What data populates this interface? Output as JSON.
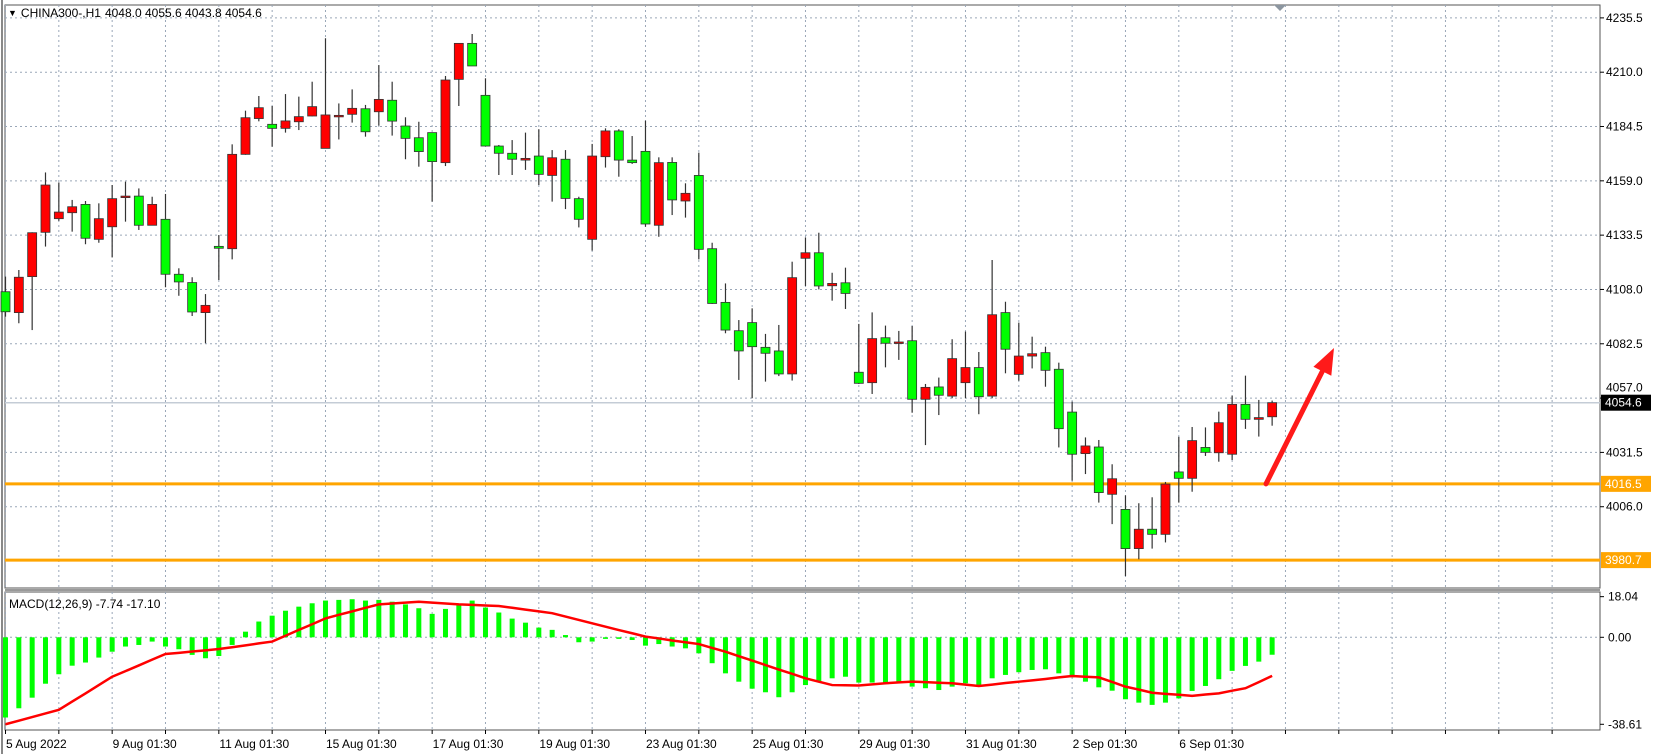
{
  "header": {
    "symbol": "CHINA300-,H1",
    "ohlc": "4048.0 4055.6 4043.8 4054.6",
    "menu_icon": "triangle-down-icon"
  },
  "colors": {
    "up_candle": "#ff0000",
    "down_candle": "#00ff00",
    "support_lines": "#ffa500",
    "arrow": "#ff1a1a",
    "macd_histogram": "#00ff00",
    "macd_signal": "#ff0000",
    "current_price_label_bg": "#000000"
  },
  "price_axis": {
    "ticks": [
      "4235.5",
      "4210.0",
      "4184.5",
      "4159.0",
      "4133.5",
      "4108.0",
      "4082.5",
      "4057.0",
      "4031.5",
      "4006.0"
    ],
    "current_price": "4054.6",
    "levels": [
      "4016.5",
      "3980.7"
    ]
  },
  "indicator": {
    "label": "MACD(12,26,9) -7.74 -17.10",
    "axis_ticks": [
      "18.04",
      "0.00",
      "-38.61"
    ]
  },
  "time_axis": {
    "labels": [
      "5 Aug 2022",
      "9 Aug 01:30",
      "11 Aug 01:30",
      "15 Aug 01:30",
      "17 Aug 01:30",
      "19 Aug 01:30",
      "23 Aug 01:30",
      "25 Aug 01:30",
      "29 Aug 01:30",
      "31 Aug 01:30",
      "2 Sep 01:30",
      "6 Sep 01:30"
    ]
  },
  "annotations": {
    "arrow": "up-right arrow from 4016.5 toward 4087"
  },
  "chart_data": [
    {
      "type": "candlestick",
      "title": "CHINA300-,H1",
      "timeframe": "H1",
      "ylim": [
        3968,
        4240
      ],
      "grid": true,
      "ohlc": [
        [
          4106.7,
          4113.8,
          4095.0,
          4097.3
        ],
        [
          4096.9,
          4116.9,
          4091.9,
          4113.5
        ],
        [
          4113.8,
          4134.6,
          4088.7,
          4134.4
        ],
        [
          4134.6,
          4162.7,
          4127.9,
          4156.8
        ],
        [
          4141.0,
          4158.0,
          4140.0,
          4144.1
        ],
        [
          4143.8,
          4149.8,
          4134.9,
          4146.6
        ],
        [
          4147.7,
          4149.3,
          4129.0,
          4131.8
        ],
        [
          4131.3,
          4148.2,
          4129.7,
          4141.0
        ],
        [
          4137.2,
          4156.8,
          4122.8,
          4150.4
        ],
        [
          4151.6,
          4158.4,
          4139.6,
          4151.6
        ],
        [
          4151.6,
          4155.2,
          4135.7,
          4137.9
        ],
        [
          4137.9,
          4151.3,
          4137.9,
          4147.7
        ],
        [
          4140.7,
          4152.6,
          4108.8,
          4114.9
        ],
        [
          4114.9,
          4117.7,
          4104.8,
          4111.3
        ],
        [
          4111.0,
          4113.5,
          4095.3,
          4097.2
        ],
        [
          4096.9,
          4105.6,
          4082.5,
          4100.3
        ],
        [
          4128.0,
          4133.3,
          4112.2,
          4127.1
        ],
        [
          4126.9,
          4175.9,
          4121.9,
          4171.2
        ],
        [
          4171.2,
          4191.7,
          4171.0,
          4188.4
        ],
        [
          4188.0,
          4198.6,
          4186.7,
          4193.1
        ],
        [
          4185.3,
          4193.9,
          4174.8,
          4183.4
        ],
        [
          4183.4,
          4199.5,
          4181.4,
          4186.9
        ],
        [
          4186.5,
          4198.3,
          4182.6,
          4188.9
        ],
        [
          4189.2,
          4205.3,
          4189.0,
          4193.6
        ],
        [
          4174.0,
          4225.7,
          4174.0,
          4189.7
        ],
        [
          4189.3,
          4195.1,
          4178.2,
          4189.5
        ],
        [
          4190.0,
          4201.7,
          4186.1,
          4192.8
        ],
        [
          4192.6,
          4194.4,
          4179.5,
          4181.8
        ],
        [
          4191.2,
          4213.1,
          4184.7,
          4197.0
        ],
        [
          4196.6,
          4205.3,
          4180.0,
          4186.8
        ],
        [
          4184.5,
          4188.6,
          4168.9,
          4178.7
        ],
        [
          4179.0,
          4186.5,
          4165.4,
          4172.5
        ],
        [
          4181.4,
          4181.4,
          4149.0,
          4167.8
        ],
        [
          4167.3,
          4208.0,
          4165.7,
          4206.1
        ],
        [
          4206.4,
          4223.3,
          4193.9,
          4223.3
        ],
        [
          4223.3,
          4227.7,
          4212.7,
          4212.7
        ],
        [
          4198.9,
          4206.9,
          4175.0,
          4175.1
        ],
        [
          4175.1,
          4175.6,
          4161.5,
          4171.7
        ],
        [
          4171.7,
          4177.9,
          4161.5,
          4168.9
        ],
        [
          4168.5,
          4181.4,
          4163.9,
          4169.3
        ],
        [
          4170.4,
          4183.0,
          4156.8,
          4161.8
        ],
        [
          4161.3,
          4173.2,
          4149.0,
          4169.6
        ],
        [
          4168.9,
          4173.2,
          4145.5,
          4150.5
        ],
        [
          4150.4,
          4151.3,
          4136.9,
          4140.7
        ],
        [
          4131.3,
          4176.1,
          4126.0,
          4170.4
        ],
        [
          4170.1,
          4183.4,
          4165.0,
          4182.2
        ],
        [
          4182.2,
          4183.0,
          4160.7,
          4168.5
        ],
        [
          4168.5,
          4179.8,
          4166.7,
          4167.3
        ],
        [
          4172.6,
          4187.0,
          4137.2,
          4138.5
        ],
        [
          4137.9,
          4169.8,
          4132.5,
          4167.3
        ],
        [
          4167.4,
          4169.8,
          4142.7,
          4149.8
        ],
        [
          4149.3,
          4157.6,
          4141.5,
          4152.9
        ],
        [
          4161.3,
          4172.0,
          4121.9,
          4126.6
        ],
        [
          4126.9,
          4129.7,
          4101.0,
          4101.2
        ],
        [
          4101.7,
          4110.6,
          4087.2,
          4088.7
        ],
        [
          4088.4,
          4093.4,
          4065.3,
          4078.9
        ],
        [
          4092.2,
          4098.9,
          4056.7,
          4080.9
        ],
        [
          4080.6,
          4086.9,
          4064.5,
          4077.8
        ],
        [
          4078.9,
          4091.1,
          4067.1,
          4068.1
        ],
        [
          4068.1,
          4120.8,
          4065.0,
          4113.3
        ],
        [
          4122.4,
          4132.2,
          4109.4,
          4125.0
        ],
        [
          4125.0,
          4134.4,
          4107.8,
          4109.4
        ],
        [
          4109.5,
          4115.6,
          4102.5,
          4110.6
        ],
        [
          4110.9,
          4118.0,
          4098.6,
          4105.9
        ],
        [
          4068.9,
          4091.6,
          4063.4,
          4063.7
        ],
        [
          4064.0,
          4097.0,
          4058.7,
          4084.7
        ],
        [
          4085.1,
          4090.8,
          4071.2,
          4082.5
        ],
        [
          4083.1,
          4088.3,
          4074.7,
          4083.1
        ],
        [
          4083.7,
          4090.6,
          4049.9,
          4056.2
        ],
        [
          4056.2,
          4063.4,
          4034.7,
          4061.8
        ],
        [
          4062.0,
          4066.4,
          4048.8,
          4058.1
        ],
        [
          4057.7,
          4084.4,
          4056.7,
          4075.3
        ],
        [
          4064.0,
          4088.0,
          4056.7,
          4071.1
        ],
        [
          4071.1,
          4078.4,
          4049.2,
          4057.4
        ],
        [
          4057.7,
          4121.6,
          4056.7,
          4095.9
        ],
        [
          4096.9,
          4102.0,
          4068.4,
          4079.7
        ],
        [
          4067.9,
          4092.2,
          4064.9,
          4076.5
        ],
        [
          4076.5,
          4085.6,
          4070.7,
          4077.6
        ],
        [
          4078.1,
          4080.9,
          4062.1,
          4069.8
        ],
        [
          4070.3,
          4073.4,
          4033.6,
          4042.4
        ],
        [
          4050.2,
          4055.1,
          4018.0,
          4030.4
        ],
        [
          4030.7,
          4038.3,
          4021.1,
          4034.3
        ],
        [
          4033.8,
          4037.1,
          4007.7,
          4012.4
        ],
        [
          4011.6,
          4025.7,
          3997.6,
          4018.9
        ],
        [
          4004.5,
          4011.1,
          3973.2,
          3986.1
        ],
        [
          3986.1,
          4007.4,
          3981.1,
          3995.2
        ],
        [
          3995.2,
          4010.2,
          3986.1,
          3992.8
        ],
        [
          3992.8,
          4017.4,
          3989.0,
          4016.4
        ],
        [
          4022.1,
          4038.6,
          4007.7,
          4019.1
        ],
        [
          4019.1,
          4043.2,
          4012.8,
          4036.8
        ],
        [
          4033.6,
          4043.0,
          4029.6,
          4031.3
        ],
        [
          4031.1,
          4050.4,
          4026.9,
          4045.2
        ],
        [
          4030.4,
          4057.9,
          4027.7,
          4053.8
        ],
        [
          4053.8,
          4067.3,
          4042.3,
          4046.8
        ],
        [
          4046.8,
          4055.9,
          4038.7,
          4047.6
        ],
        [
          4048.0,
          4055.6,
          4043.8,
          4054.6
        ]
      ],
      "horizontal_levels": [
        4016.5,
        3980.7
      ],
      "current_price": 4054.6
    },
    {
      "type": "bar+line",
      "title": "MACD(12,26,9)",
      "ylim": [
        -38.61,
        18.04
      ],
      "histogram": [
        -35.6,
        -31.5,
        -26.8,
        -20.6,
        -16.4,
        -12.6,
        -11.2,
        -9.0,
        -6.4,
        -4.1,
        -3.4,
        -1.9,
        -4.1,
        -5.3,
        -7.8,
        -9.3,
        -8.3,
        -3.4,
        2.5,
        7.0,
        9.6,
        11.8,
        13.6,
        15.1,
        16.3,
        16.6,
        16.9,
        16.3,
        16.6,
        15.8,
        14.6,
        12.9,
        10.4,
        12.6,
        14.3,
        16.3,
        13.2,
        11.0,
        8.3,
        6.5,
        4.3,
        3.3,
        1.0,
        -2.2,
        -1.9,
        -0.7,
        -0.7,
        -1.2,
        -3.7,
        -3.0,
        -4.1,
        -4.9,
        -7.1,
        -11.5,
        -16.0,
        -19.7,
        -22.8,
        -24.4,
        -26.6,
        -24.4,
        -21.2,
        -19.7,
        -18.2,
        -17.5,
        -20.1,
        -20.1,
        -20.1,
        -19.7,
        -21.9,
        -22.6,
        -23.4,
        -21.9,
        -20.4,
        -21.2,
        -18.2,
        -16.7,
        -15.5,
        -14.5,
        -14.2,
        -16.0,
        -17.8,
        -19.7,
        -22.2,
        -23.7,
        -27.5,
        -29.0,
        -30.0,
        -29.0,
        -27.1,
        -23.8,
        -21.6,
        -18.6,
        -14.9,
        -12.7,
        -10.8,
        -7.74
      ],
      "signal": [
        -38.6,
        -37.0,
        -35.4,
        -33.8,
        -32.2,
        -28.5,
        -24.9,
        -21.2,
        -17.5,
        -15.0,
        -12.5,
        -9.9,
        -7.4,
        -6.9,
        -6.3,
        -5.8,
        -5.2,
        -4.4,
        -3.6,
        -2.7,
        -1.9,
        0.7,
        3.3,
        5.8,
        8.4,
        10.0,
        11.5,
        13.1,
        14.6,
        15.0,
        15.4,
        15.8,
        15.4,
        15.0,
        14.6,
        14.4,
        14.1,
        13.9,
        13.1,
        12.3,
        11.5,
        10.7,
        9.2,
        7.7,
        6.2,
        4.7,
        3.2,
        1.8,
        0.3,
        -0.5,
        -1.4,
        -2.2,
        -3.0,
        -4.7,
        -6.4,
        -8.4,
        -10.3,
        -12.3,
        -14.3,
        -16.2,
        -18.2,
        -19.7,
        -21.2,
        -21.3,
        -21.4,
        -20.9,
        -20.4,
        -20.0,
        -19.7,
        -19.9,
        -20.2,
        -20.4,
        -21.0,
        -21.6,
        -21.0,
        -20.3,
        -19.7,
        -19.1,
        -18.5,
        -17.8,
        -17.2,
        -17.5,
        -17.8,
        -19.8,
        -21.9,
        -23.2,
        -24.6,
        -25.1,
        -25.5,
        -26.0,
        -25.4,
        -24.9,
        -23.7,
        -22.6,
        -19.9,
        -17.1
      ]
    }
  ]
}
